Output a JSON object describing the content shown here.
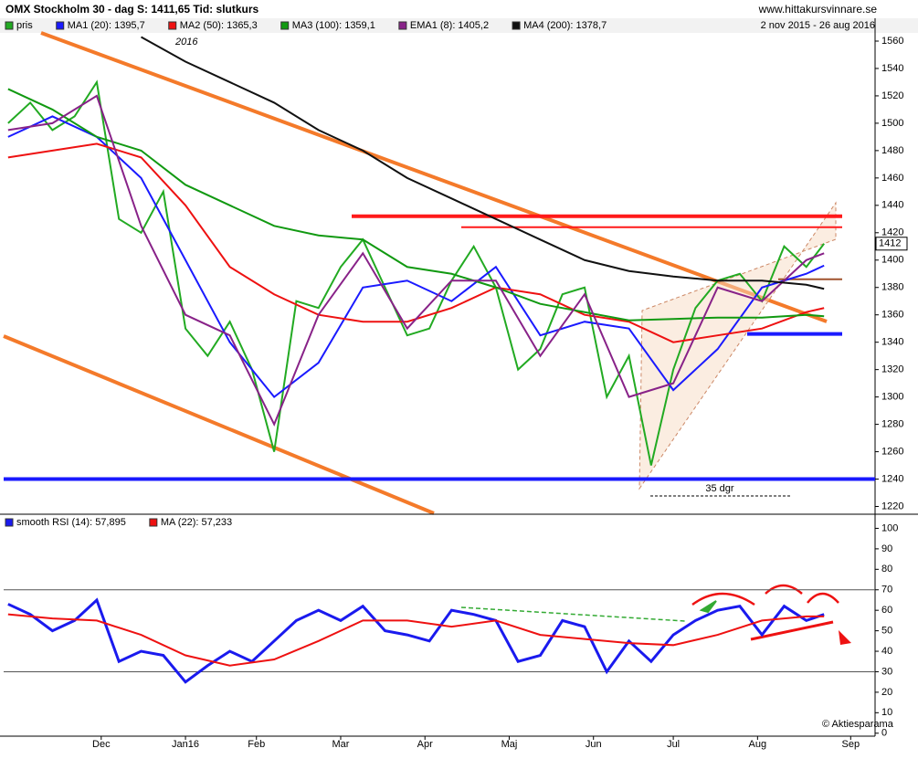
{
  "header": {
    "title": "OMX Stockholm 30 -  dag   S: 1411,65   Tid: slutkurs",
    "site": "www.hittakursvinnare.se",
    "range": "2 nov 2015 - 26 aug 2016",
    "year_note": "2016",
    "span_note": "35 dgr",
    "credit": "© Aktiesparama"
  },
  "chart_data": [
    {
      "type": "line",
      "xlim": [
        -1,
        195.5
      ],
      "ylim": [
        1215,
        1566
      ],
      "yticks": [
        1220,
        1240,
        1260,
        1280,
        1300,
        1320,
        1340,
        1360,
        1380,
        1400,
        1420,
        1440,
        1460,
        1480,
        1500,
        1520,
        1540,
        1560
      ],
      "last_price": 1412,
      "levels": [
        {
          "value": 1432,
          "color": "#ff1a1a"
        },
        {
          "value": 1424,
          "color": "#ff1a1a"
        },
        {
          "value": 1240,
          "color": "#1a1aff"
        },
        {
          "value": 1346,
          "color": "#1a1aff"
        },
        {
          "value": 1386,
          "color": "#a0522d"
        }
      ],
      "series": [
        {
          "name": "pris",
          "color": "#22aa22",
          "x": [
            0,
            5,
            10,
            15,
            20,
            25,
            30,
            35,
            40,
            45,
            50,
            55,
            60,
            65,
            70,
            75,
            80,
            85,
            90,
            95,
            100,
            105,
            110,
            115,
            120,
            125,
            130,
            135,
            140,
            145,
            150,
            155,
            160,
            165,
            170,
            175,
            180,
            184
          ],
          "values": [
            1500,
            1515,
            1495,
            1505,
            1530,
            1430,
            1420,
            1450,
            1350,
            1330,
            1355,
            1320,
            1260,
            1370,
            1365,
            1395,
            1415,
            1380,
            1345,
            1350,
            1385,
            1410,
            1380,
            1320,
            1335,
            1375,
            1380,
            1300,
            1330,
            1250,
            1320,
            1365,
            1385,
            1390,
            1370,
            1410,
            1395,
            1412
          ]
        },
        {
          "name": "MA1 (20): 1395,7",
          "color": "#1a1aff",
          "x": [
            0,
            10,
            20,
            30,
            40,
            50,
            60,
            70,
            80,
            90,
            100,
            110,
            120,
            130,
            140,
            150,
            160,
            170,
            180,
            184
          ],
          "values": [
            1490,
            1505,
            1490,
            1460,
            1400,
            1340,
            1300,
            1325,
            1380,
            1385,
            1370,
            1395,
            1345,
            1355,
            1350,
            1305,
            1335,
            1380,
            1390,
            1396
          ]
        },
        {
          "name": "MA2 (50): 1365,3",
          "color": "#ee1111",
          "x": [
            0,
            10,
            20,
            30,
            40,
            50,
            60,
            70,
            80,
            90,
            100,
            110,
            120,
            130,
            140,
            150,
            160,
            170,
            180,
            184
          ],
          "values": [
            1475,
            1480,
            1485,
            1475,
            1440,
            1395,
            1375,
            1360,
            1355,
            1355,
            1365,
            1380,
            1375,
            1360,
            1355,
            1340,
            1345,
            1350,
            1362,
            1365
          ]
        },
        {
          "name": "MA3 (100): 1359,1",
          "color": "#119911",
          "x": [
            0,
            10,
            20,
            30,
            40,
            50,
            60,
            70,
            80,
            90,
            100,
            110,
            120,
            130,
            140,
            150,
            160,
            170,
            180,
            184
          ],
          "values": [
            1525,
            1510,
            1490,
            1480,
            1455,
            1440,
            1425,
            1418,
            1415,
            1395,
            1390,
            1380,
            1368,
            1362,
            1356,
            1357,
            1358,
            1358,
            1360,
            1359
          ]
        },
        {
          "name": "EMA1 (8): 1405,2",
          "color": "#882288",
          "x": [
            0,
            10,
            20,
            30,
            40,
            50,
            60,
            70,
            80,
            90,
            100,
            110,
            120,
            130,
            140,
            150,
            160,
            170,
            180,
            184
          ],
          "values": [
            1495,
            1500,
            1520,
            1425,
            1360,
            1345,
            1280,
            1360,
            1405,
            1350,
            1385,
            1385,
            1330,
            1375,
            1300,
            1310,
            1380,
            1370,
            1400,
            1405
          ]
        },
        {
          "name": "MA4 (200): 1378,7",
          "color": "#111111",
          "x": [
            30,
            40,
            50,
            60,
            70,
            80,
            90,
            100,
            110,
            120,
            130,
            140,
            150,
            160,
            170,
            180,
            184
          ],
          "values": [
            1563,
            1545,
            1530,
            1515,
            1495,
            1480,
            1460,
            1445,
            1430,
            1415,
            1400,
            1392,
            1388,
            1385,
            1385,
            1382,
            1379
          ]
        }
      ]
    },
    {
      "type": "line",
      "xlim": [
        -1,
        195.5
      ],
      "ylim": [
        -1,
        106
      ],
      "yticks": [
        0,
        10,
        20,
        30,
        40,
        50,
        60,
        70,
        80,
        90,
        100
      ],
      "hlines": [
        70,
        30
      ],
      "xticks": [
        {
          "value": 21,
          "label": "Dec"
        },
        {
          "value": 40,
          "label": "Jan16"
        },
        {
          "value": 56,
          "label": "Feb"
        },
        {
          "value": 75,
          "label": "Mar"
        },
        {
          "value": 94,
          "label": "Apr"
        },
        {
          "value": 113,
          "label": "Maj"
        },
        {
          "value": 132,
          "label": "Jun"
        },
        {
          "value": 150,
          "label": "Jul"
        },
        {
          "value": 169,
          "label": "Aug"
        },
        {
          "value": 190,
          "label": "Sep"
        }
      ],
      "series": [
        {
          "name": "smooth RSI (14): 57,895",
          "color": "#1a1aee",
          "x": [
            0,
            5,
            10,
            15,
            20,
            25,
            30,
            35,
            40,
            45,
            50,
            55,
            60,
            65,
            70,
            75,
            80,
            85,
            90,
            95,
            100,
            105,
            110,
            115,
            120,
            125,
            130,
            135,
            140,
            145,
            150,
            155,
            160,
            165,
            170,
            175,
            180,
            184
          ],
          "values": [
            63,
            58,
            50,
            55,
            65,
            35,
            40,
            38,
            25,
            33,
            40,
            35,
            45,
            55,
            60,
            55,
            62,
            50,
            48,
            45,
            60,
            58,
            55,
            35,
            38,
            55,
            52,
            30,
            45,
            35,
            48,
            55,
            60,
            62,
            48,
            62,
            55,
            58
          ]
        },
        {
          "name": "MA (22): 57,233",
          "color": "#ee1111",
          "x": [
            0,
            10,
            20,
            30,
            40,
            50,
            60,
            70,
            80,
            90,
            100,
            110,
            120,
            130,
            140,
            150,
            160,
            170,
            180,
            184
          ],
          "values": [
            58,
            56,
            55,
            48,
            38,
            33,
            36,
            45,
            55,
            55,
            52,
            55,
            48,
            46,
            44,
            43,
            48,
            55,
            57,
            57
          ]
        }
      ]
    }
  ]
}
